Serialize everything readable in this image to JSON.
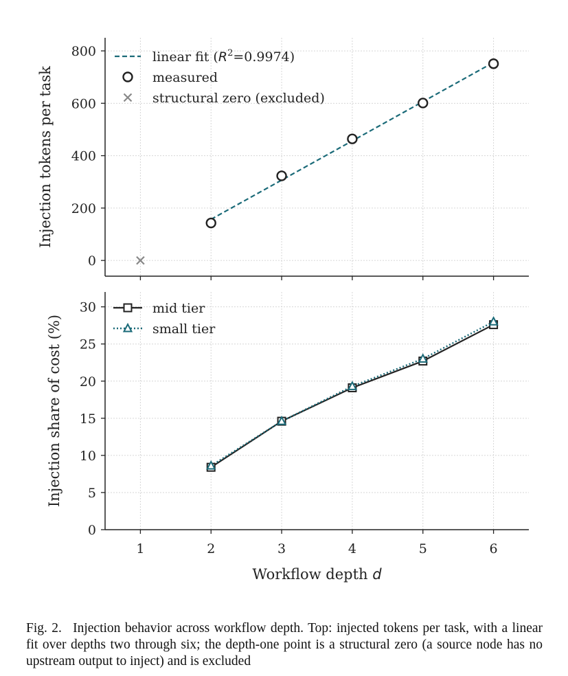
{
  "chart_data": [
    {
      "type": "scatter",
      "xlim": [
        0.5,
        6.5
      ],
      "ylim": [
        -60,
        850
      ],
      "yticks": [
        0,
        200,
        400,
        600,
        800
      ],
      "xticks": [
        1,
        2,
        3,
        4,
        5,
        6
      ],
      "xlabel": "",
      "ylabel": "Injection tokens per task",
      "grid": true,
      "legend_position": "top-left",
      "series": [
        {
          "name": "measured",
          "x": [
            2,
            3,
            4,
            5,
            6
          ],
          "y": [
            143,
            323,
            464,
            601,
            751
          ],
          "color": "#222222"
        },
        {
          "name": "structural zero (excluded)",
          "x": [
            1
          ],
          "y": [
            0
          ],
          "color": "#888888"
        }
      ],
      "fit": {
        "label_prefix": "linear fit (",
        "label_r2": "=0.9974)",
        "x": [
          2,
          6
        ],
        "y": [
          157,
          756
        ],
        "color": "#1a6a78"
      }
    },
    {
      "type": "line",
      "xlim": [
        0.5,
        6.5
      ],
      "ylim": [
        0,
        32
      ],
      "yticks": [
        0,
        5,
        10,
        15,
        20,
        25,
        30
      ],
      "xticks": [
        1,
        2,
        3,
        4,
        5,
        6
      ],
      "xlabel_prefix": "Workflow depth ",
      "xlabel_var": "d",
      "ylabel": "Injection share of cost (%)",
      "grid": true,
      "legend_position": "top-left",
      "series": [
        {
          "name": "mid tier",
          "x": [
            2,
            3,
            4,
            5,
            6
          ],
          "y": [
            8.4,
            14.6,
            19.1,
            22.7,
            27.6
          ],
          "color": "#222222"
        },
        {
          "name": "small tier",
          "x": [
            2,
            3,
            4,
            5,
            6
          ],
          "y": [
            8.6,
            14.6,
            19.3,
            23.0,
            28.0
          ],
          "color": "#1a6a78"
        }
      ]
    }
  ],
  "caption": "Fig. 2.  Injection behavior across workflow depth. Top: injected tokens per task, with a linear fit over depths two through six; the depth-one point is a structural zero (a source node has no upstream output to inject) and is excluded"
}
